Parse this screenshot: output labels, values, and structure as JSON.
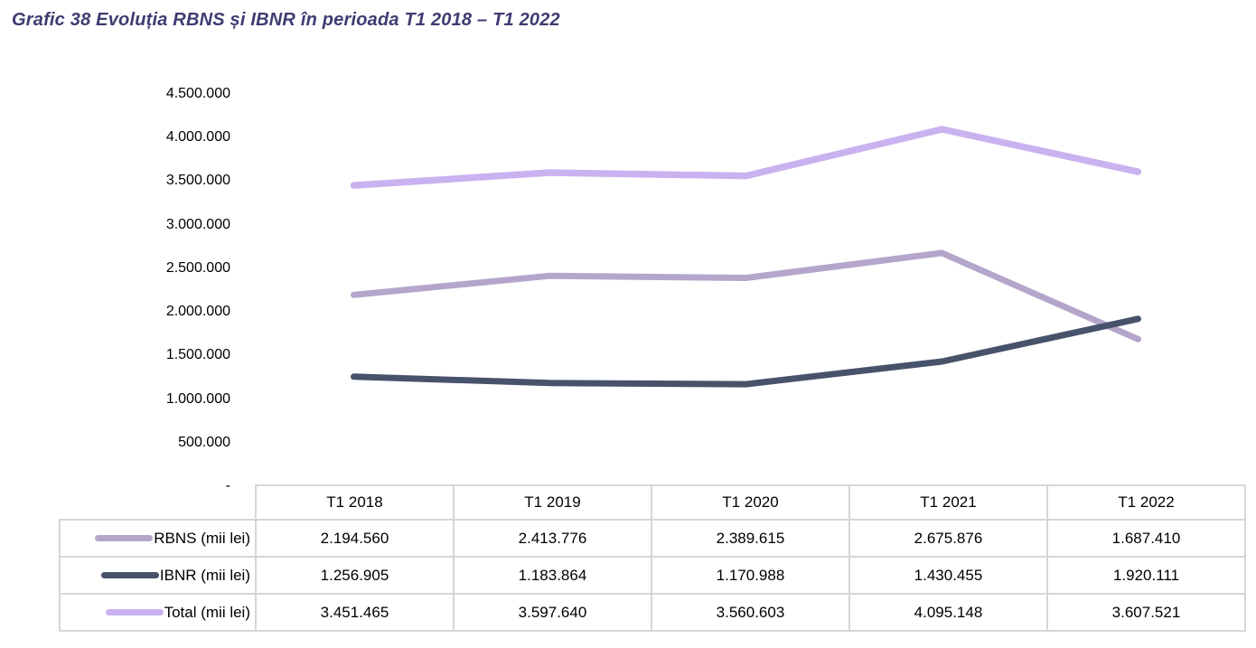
{
  "colors": {
    "title_text": "#3e3c72",
    "table_border": "#d6d6d6",
    "body_text": "#000000",
    "rbns_line": "#b4a6cb",
    "ibnr_line": "#47526b",
    "total_line": "#cab2f0"
  },
  "chart_data": {
    "type": "line",
    "title": "Grafic 38 Evoluția RBNS și IBNR în perioada T1 2018 – T1 2022",
    "categories": [
      "T1 2018",
      "T1 2019",
      "T1 2020",
      "T1 2021",
      "T1 2022"
    ],
    "series": [
      {
        "name": "RBNS (mii lei)",
        "color": "#b4a6cb",
        "stroke_width": 7,
        "values": [
          2194560,
          2413776,
          2389615,
          2675876,
          1687410
        ]
      },
      {
        "name": "IBNR (mii lei)",
        "color": "#47526b",
        "stroke_width": 7,
        "values": [
          1256905,
          1183864,
          1170988,
          1430455,
          1920111
        ]
      },
      {
        "name": "Total (mii lei)",
        "color": "#cab2f0",
        "stroke_width": 7.5,
        "values": [
          3451465,
          3597640,
          3560603,
          4095148,
          3607521
        ]
      }
    ],
    "ylim": [
      0,
      4500000
    ],
    "y_ticks": [
      "4.500.000",
      "4.000.000",
      "3.500.000",
      "3.000.000",
      "2.500.000",
      "2.000.000",
      "1.500.000",
      "1.000.000",
      "500.000",
      "-"
    ],
    "grid": false,
    "markers": false,
    "legend_position": "table-left"
  },
  "table": {
    "corner_label": "",
    "columns": [
      "T1 2018",
      "T1 2019",
      "T1 2020",
      "T1 2021",
      "T1 2022"
    ],
    "rows": [
      {
        "label": "RBNS (mii lei)",
        "values": [
          "2.194.560",
          "2.413.776",
          "2.389.615",
          "2.675.876",
          "1.687.410"
        ]
      },
      {
        "label": "IBNR (mii lei)",
        "values": [
          "1.256.905",
          "1.183.864",
          "1.170.988",
          "1.430.455",
          "1.920.111"
        ]
      },
      {
        "label": "Total (mii lei)",
        "values": [
          "3.451.465",
          "3.597.640",
          "3.560.603",
          "4.095.148",
          "3.607.521"
        ]
      }
    ]
  }
}
